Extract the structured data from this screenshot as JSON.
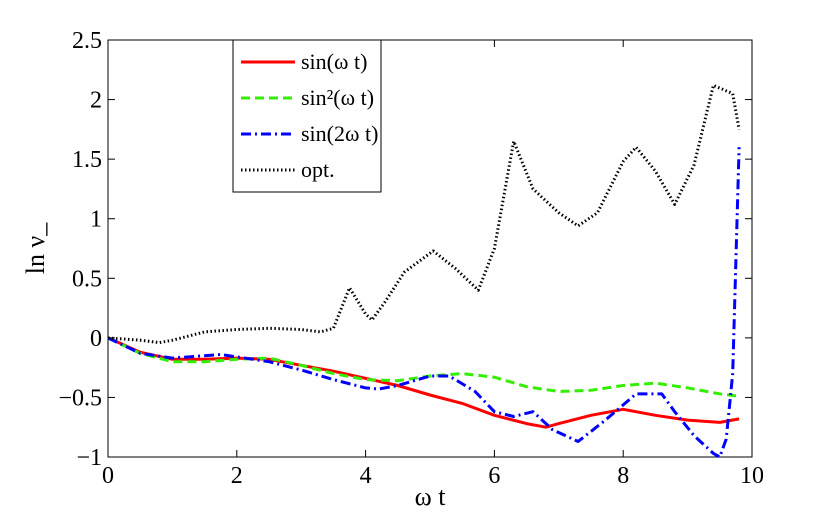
{
  "chart_data": {
    "type": "line",
    "title": "",
    "xlabel": "ω t",
    "ylabel": "ln ν_",
    "xlim": [
      0,
      10
    ],
    "ylim": [
      -1,
      2.5
    ],
    "xticks": [
      "0",
      "2",
      "4",
      "6",
      "8",
      "10"
    ],
    "yticks": [
      "−1",
      "−0.5",
      "0",
      "0.5",
      "1",
      "1.5",
      "2",
      "2.5"
    ],
    "grid": false,
    "legend_position": "top-left",
    "series": [
      {
        "name": "sin(ω t)",
        "color": "#ff0000",
        "style": "solid",
        "x": [
          0,
          0.5,
          1,
          1.5,
          2,
          2.5,
          3,
          3.5,
          4,
          4.5,
          5,
          5.5,
          6,
          6.5,
          6.8,
          7,
          7.5,
          8,
          8.5,
          9,
          9.5,
          9.8
        ],
        "y": [
          0,
          -0.12,
          -0.18,
          -0.18,
          -0.17,
          -0.18,
          -0.23,
          -0.28,
          -0.34,
          -0.4,
          -0.48,
          -0.55,
          -0.65,
          -0.72,
          -0.75,
          -0.72,
          -0.65,
          -0.6,
          -0.65,
          -0.69,
          -0.71,
          -0.68
        ]
      },
      {
        "name": "sin²(ω t)",
        "color": "#33ee00",
        "style": "dashed",
        "x": [
          0,
          0.5,
          1,
          1.5,
          2,
          2.5,
          3,
          3.5,
          4,
          4.5,
          5,
          5.5,
          6,
          6.5,
          7,
          7.5,
          8,
          8.5,
          9,
          9.5,
          9.8
        ],
        "y": [
          0,
          -0.13,
          -0.2,
          -0.2,
          -0.18,
          -0.17,
          -0.23,
          -0.3,
          -0.35,
          -0.36,
          -0.32,
          -0.3,
          -0.33,
          -0.41,
          -0.45,
          -0.44,
          -0.4,
          -0.38,
          -0.42,
          -0.47,
          -0.49
        ]
      },
      {
        "name": "sin(2ω t)",
        "color": "#0000ff",
        "style": "dashdot",
        "x": [
          0,
          0.5,
          1,
          1.5,
          1.75,
          2,
          2.5,
          3,
          3.5,
          4,
          4.2,
          4.5,
          5,
          5.3,
          5.7,
          6,
          6.3,
          6.6,
          6.9,
          7.3,
          7.7,
          8.2,
          8.6,
          8.8,
          9.1,
          9.4,
          9.5,
          9.6,
          9.7,
          9.8
        ],
        "y": [
          0,
          -0.13,
          -0.17,
          -0.15,
          -0.14,
          -0.16,
          -0.2,
          -0.27,
          -0.35,
          -0.42,
          -0.43,
          -0.4,
          -0.32,
          -0.32,
          -0.45,
          -0.62,
          -0.66,
          -0.62,
          -0.77,
          -0.87,
          -0.7,
          -0.47,
          -0.47,
          -0.62,
          -0.82,
          -0.97,
          -1.0,
          -0.85,
          -0.3,
          1.6
        ]
      },
      {
        "name": "opt.",
        "color": "#000000",
        "style": "dotted",
        "x": [
          0,
          0.5,
          0.8,
          1,
          1.5,
          2,
          2.5,
          3,
          3.3,
          3.5,
          3.75,
          4,
          4.1,
          4.3,
          4.6,
          5.05,
          5.4,
          5.75,
          6,
          6.3,
          6.6,
          7,
          7.3,
          7.6,
          8,
          8.2,
          8.5,
          8.8,
          9.1,
          9.4,
          9.7,
          9.8
        ],
        "y": [
          0,
          -0.02,
          -0.04,
          -0.02,
          0.05,
          0.07,
          0.08,
          0.07,
          0.05,
          0.08,
          0.42,
          0.2,
          0.15,
          0.3,
          0.55,
          0.73,
          0.58,
          0.4,
          0.75,
          1.65,
          1.25,
          1.05,
          0.94,
          1.05,
          1.48,
          1.6,
          1.4,
          1.12,
          1.45,
          2.12,
          2.05,
          1.75
        ]
      }
    ]
  }
}
